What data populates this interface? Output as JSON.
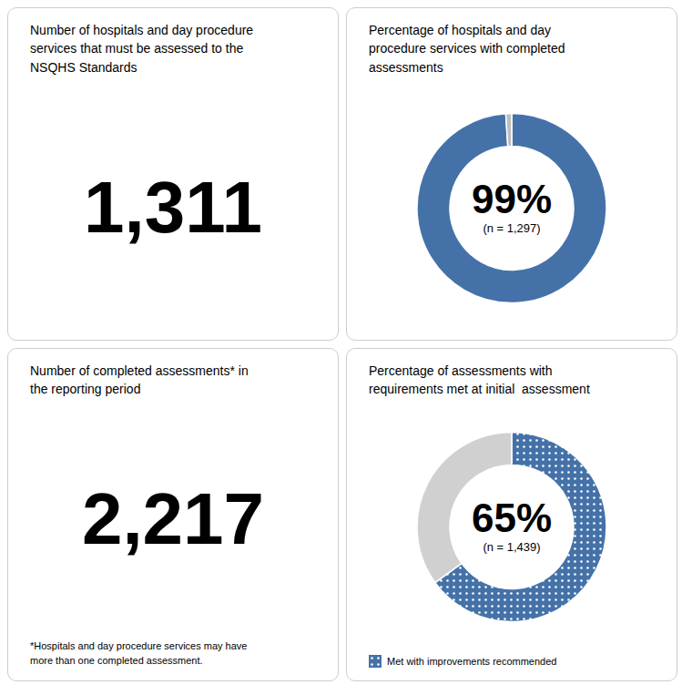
{
  "chart_data": [
    {
      "type": "indicator",
      "title": "Number of hospitals and day procedure\nservices that must be assessed to the\nNSQHS Standards",
      "values": [
        1311
      ],
      "value_labels": [
        "1,311"
      ]
    },
    {
      "type": "pie",
      "title": "Percentage of hospitals and day\nprocedure services with completed\nassessments",
      "values": [
        99,
        1
      ],
      "colors": [
        "#4472A8",
        "#BEBEBE"
      ],
      "annotations": [
        "99%",
        "(n = 1,297)"
      ]
    },
    {
      "type": "indicator",
      "title": "Number of completed assessments* in\nthe reporting period",
      "values": [
        2217
      ],
      "value_labels": [
        "2,217"
      ],
      "annotations": [
        "*Hospitals and day procedure services may have\nmore than one completed assessment."
      ]
    },
    {
      "type": "pie",
      "title": "Percentage of assessments with\nrequirements met at initial  assessment",
      "categories": [
        "Met with improvements recommended",
        null
      ],
      "values": [
        65,
        35
      ],
      "colors": [
        "#4472A8",
        "#D0D0D0"
      ],
      "annotations": [
        "65%",
        "(n = 1,439)"
      ],
      "legend": "bottom"
    }
  ]
}
